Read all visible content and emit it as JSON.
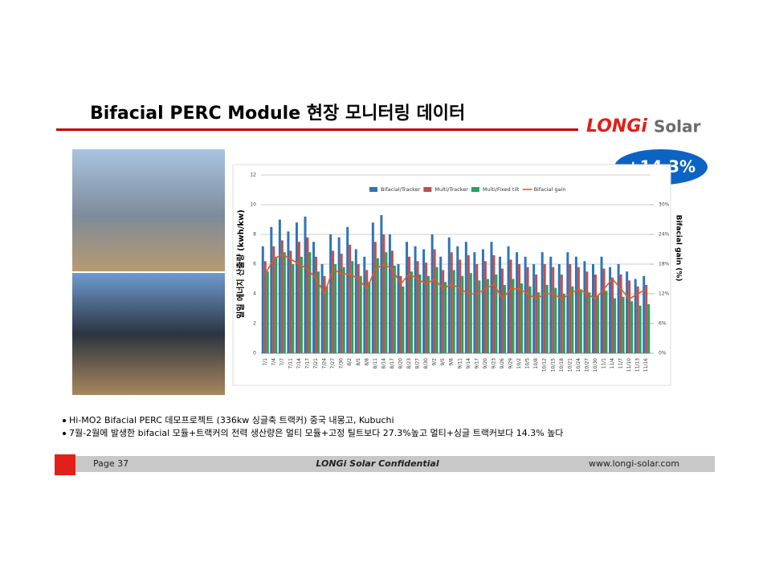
{
  "header": {
    "title": "Bifacial PERC Module 현장 모니터링 데이터",
    "logo_brand": "LONGi",
    "logo_suffix": "Solar",
    "badge": "+14.3%"
  },
  "chart_data": {
    "type": "bar",
    "y_label": "일일 에너지 산출량 (kwh/kw)",
    "y2_label": "Bifacial gain (%)",
    "categories": [
      "7/1",
      "7/4",
      "7/7",
      "7/11",
      "7/14",
      "7/17",
      "7/21",
      "7/24",
      "7/27",
      "7/30",
      "8/2",
      "8/5",
      "8/8",
      "8/11",
      "8/14",
      "8/17",
      "8/20",
      "8/23",
      "8/27",
      "8/30",
      "9/2",
      "9/5",
      "9/8",
      "9/11",
      "9/14",
      "9/17",
      "9/20",
      "9/23",
      "9/26",
      "9/29",
      "10/2",
      "10/5",
      "10/8",
      "10/12",
      "10/15",
      "10/18",
      "10/21",
      "10/24",
      "10/27",
      "10/30",
      "11/1",
      "11/4",
      "11/7",
      "11/10",
      "11/13",
      "11/16"
    ],
    "series": [
      {
        "name": "Bifacial/Tracker",
        "color": "#2e75b6",
        "values": [
          7.2,
          8.5,
          9.0,
          8.2,
          8.8,
          9.2,
          7.5,
          6.0,
          8.0,
          7.8,
          8.5,
          7.0,
          6.5,
          8.8,
          9.3,
          8.0,
          6.0,
          7.5,
          7.2,
          7.0,
          8.0,
          6.5,
          7.8,
          7.2,
          7.5,
          6.8,
          7.0,
          7.5,
          6.5,
          7.2,
          6.8,
          6.5,
          6.0,
          6.8,
          6.5,
          6.0,
          6.8,
          6.5,
          6.2,
          6.0,
          6.5,
          5.8,
          6.0,
          5.5,
          5.0,
          5.2
        ]
      },
      {
        "name": "Multi/Tracker",
        "color": "#c0504d",
        "values": [
          6.2,
          7.2,
          7.6,
          6.9,
          7.5,
          7.8,
          6.5,
          5.2,
          6.9,
          6.7,
          7.3,
          6.0,
          5.6,
          7.5,
          8.0,
          6.9,
          5.2,
          6.5,
          6.2,
          6.1,
          7.0,
          5.6,
          6.8,
          6.3,
          6.6,
          6.0,
          6.2,
          6.6,
          5.7,
          6.3,
          6.0,
          5.8,
          5.3,
          6.0,
          5.8,
          5.3,
          6.0,
          5.8,
          5.5,
          5.3,
          5.7,
          5.1,
          5.3,
          4.9,
          4.5,
          4.6
        ]
      },
      {
        "name": "Multi/Fixed tilt",
        "color": "#1fa65a",
        "values": [
          5.5,
          6.5,
          6.8,
          6.0,
          6.5,
          6.8,
          5.5,
          4.5,
          6.0,
          5.8,
          6.2,
          5.2,
          4.8,
          6.4,
          6.8,
          5.9,
          4.5,
          5.5,
          5.3,
          5.2,
          5.8,
          4.8,
          5.6,
          5.2,
          5.4,
          4.9,
          5.0,
          5.3,
          4.6,
          5.0,
          4.7,
          4.5,
          4.1,
          4.6,
          4.4,
          4.0,
          4.5,
          4.3,
          4.1,
          3.9,
          4.2,
          3.7,
          3.8,
          3.5,
          3.2,
          3.3
        ]
      },
      {
        "name": "Bifacial gain",
        "color": "#e05a2b",
        "type": "line",
        "axis": "y2",
        "values": [
          16,
          19,
          20,
          19,
          18,
          17,
          15,
          12,
          17,
          16,
          16,
          15,
          13,
          17,
          18,
          17,
          14,
          16,
          15,
          14,
          15,
          13,
          14,
          13,
          12,
          12,
          13,
          14,
          11,
          13,
          13,
          12,
          11,
          12,
          12,
          11,
          12,
          13,
          12,
          11,
          13,
          15,
          13,
          11,
          12,
          13
        ]
      }
    ],
    "ylim": [
      0,
      12
    ],
    "yticks": [
      0,
      2,
      4,
      6,
      8,
      10,
      12
    ],
    "y2lim": [
      0,
      36
    ],
    "y2ticks": [
      {
        "value": 0,
        "label": "0%"
      },
      {
        "value": 6,
        "label": "6%"
      },
      {
        "value": 12,
        "label": "12%"
      },
      {
        "value": 18,
        "label": "18%"
      },
      {
        "value": 24,
        "label": "24%"
      },
      {
        "value": 30,
        "label": "30%"
      }
    ],
    "grid": true,
    "legend": "top"
  },
  "bullets": [
    "Hi-MO2 Bifacial PERC 데모프로젝트 (336kw 싱글축 트랙커) 중국 내몽고, Kubuchi",
    "7월-2월에 발생한 bifacial 모듈+트랙커의 전력 생산량은 멀티 모듈+고정 틸트보다 27.3%높고 멀티+싱글 트랙커보다 14.3% 높다"
  ],
  "footer": {
    "page": "Page 37",
    "confidential": "LONGi Solar Confidential",
    "url": "www.longi-solar.com"
  }
}
